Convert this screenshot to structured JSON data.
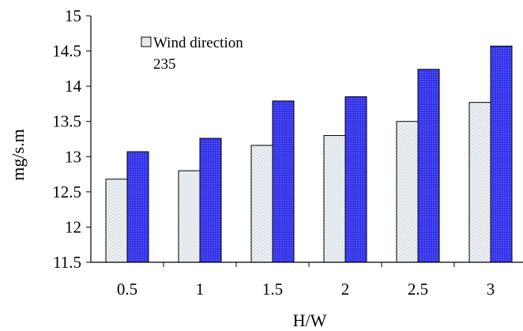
{
  "chart_data": {
    "type": "bar",
    "title": "",
    "xlabel": "H/W",
    "ylabel": "mg/s.m",
    "categories": [
      "0.5",
      "1",
      "1.5",
      "2",
      "2.5",
      "3"
    ],
    "series": [
      {
        "name": "Wind direction",
        "values": [
          12.68,
          12.8,
          13.16,
          13.3,
          13.5,
          13.77
        ],
        "fill": "#eef2f6",
        "pattern": "light-dots"
      },
      {
        "values": [
          13.07,
          13.26,
          13.79,
          13.85,
          14.24,
          14.57
        ],
        "fill": "#3030e6",
        "pattern": "blue-dots"
      }
    ],
    "ylim": [
      11.5,
      15
    ],
    "yticks": [
      "11.5",
      "12",
      "12.5",
      "13",
      "13.5",
      "14",
      "14.5",
      "15"
    ],
    "grid": false,
    "legend": {
      "position": "top-left",
      "entries": [
        "Wind direction",
        "235"
      ]
    }
  },
  "colors": {
    "series1": "#eef2f6",
    "series2": "#3030e6",
    "axis": "#000000"
  }
}
